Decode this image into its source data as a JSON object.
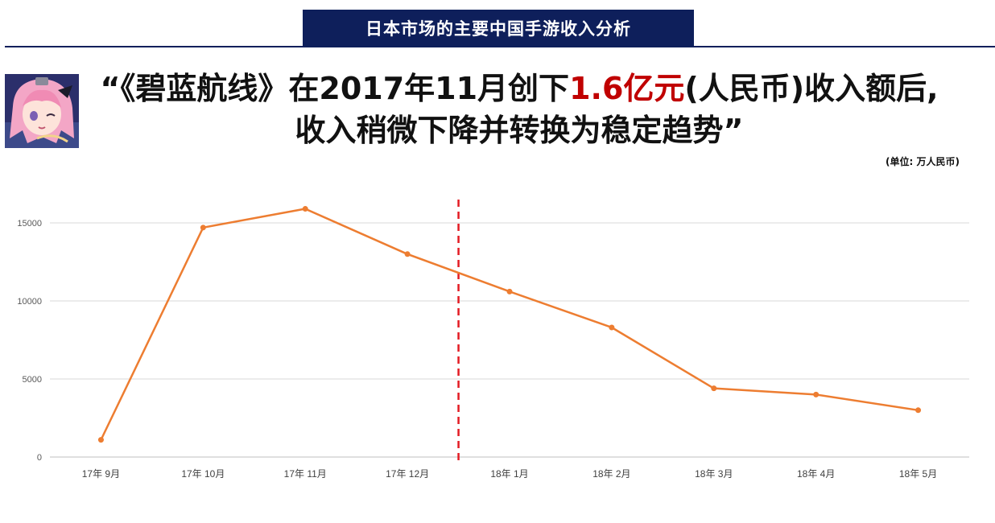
{
  "header": {
    "title": "日本市场的主要中国手游收入分析"
  },
  "headline": {
    "line1_prefix": "“《碧蓝航线》在2017年11月创下",
    "line1_highlight": "1.6亿元",
    "line1_suffix": "(人民币)收入额后,",
    "line2": "收入稍微下降并转换为稳定趋势”"
  },
  "unit_note": "(单位: 万人民币)",
  "colors": {
    "header_bg": "#0e1f5b",
    "highlight": "#c00000",
    "line": "#ed7d31",
    "marker_line": "#e31b23",
    "grid": "#d9d9d9"
  },
  "chart_data": {
    "type": "line",
    "categories": [
      "17年 9月",
      "17年 10月",
      "17年 11月",
      "17年 12月",
      "18年 1月",
      "18年 2月",
      "18年 3月",
      "18年 4月",
      "18年 5月"
    ],
    "series": [
      {
        "values": [
          1100,
          14700,
          15900,
          13000,
          10600,
          8300,
          4400,
          4000,
          3000
        ]
      }
    ],
    "ylim": [
      0,
      15000
    ],
    "yticks": [
      0,
      5000,
      10000,
      15000
    ],
    "grid": true,
    "legend": "none",
    "vertical_marker_between": [
      "17年 12月",
      "18年 1月"
    ],
    "title": "",
    "xlabel": "",
    "ylabel": ""
  }
}
